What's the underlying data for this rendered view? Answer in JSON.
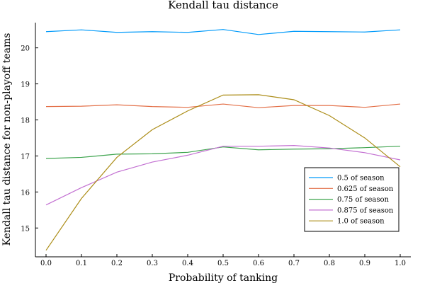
{
  "chart_data": {
    "type": "line",
    "title": "Kendall tau distance",
    "xlabel": "Probability of tanking",
    "ylabel": "Kendall tau distance for non-playoff teams",
    "x": [
      0.0,
      0.1,
      0.2,
      0.3,
      0.4,
      0.5,
      0.6,
      0.7,
      0.8,
      0.9,
      1.0
    ],
    "xlim": [
      -0.03,
      1.03
    ],
    "ylim": [
      14.2,
      20.7
    ],
    "xticks": [
      0.0,
      0.1,
      0.2,
      0.3,
      0.4,
      0.5,
      0.6,
      0.7,
      0.8,
      0.9,
      1.0
    ],
    "xtick_labels": [
      "0.0",
      "0.1",
      "0.2",
      "0.3",
      "0.4",
      "0.5",
      "0.6",
      "0.7",
      "0.8",
      "0.9",
      "1.0"
    ],
    "yticks": [
      15,
      16,
      17,
      18,
      19,
      20
    ],
    "ytick_labels": [
      "15",
      "16",
      "17",
      "18",
      "19",
      "20"
    ],
    "grid": false,
    "legend_position": "bottom-right",
    "series": [
      {
        "name": "0.5 of season",
        "color": "#009AFA",
        "values": [
          20.45,
          20.5,
          20.43,
          20.45,
          20.43,
          20.51,
          20.37,
          20.46,
          20.45,
          20.44,
          20.5
        ]
      },
      {
        "name": "0.625 of season",
        "color": "#E36F47",
        "values": [
          18.37,
          18.38,
          18.42,
          18.37,
          18.35,
          18.44,
          18.34,
          18.4,
          18.4,
          18.35,
          18.44
        ]
      },
      {
        "name": "0.75 of season",
        "color": "#3EA44E",
        "values": [
          16.93,
          16.96,
          17.05,
          17.06,
          17.1,
          17.25,
          17.17,
          17.19,
          17.2,
          17.23,
          17.27
        ]
      },
      {
        "name": "0.875 of season",
        "color": "#C371D2",
        "values": [
          15.64,
          16.12,
          16.55,
          16.83,
          17.02,
          17.27,
          17.27,
          17.29,
          17.22,
          17.09,
          16.89
        ]
      },
      {
        "name": "1.0 of season",
        "color": "#AC8D18",
        "values": [
          14.38,
          15.82,
          16.96,
          17.73,
          18.25,
          18.69,
          18.7,
          18.56,
          18.12,
          17.5,
          16.7
        ]
      }
    ]
  }
}
